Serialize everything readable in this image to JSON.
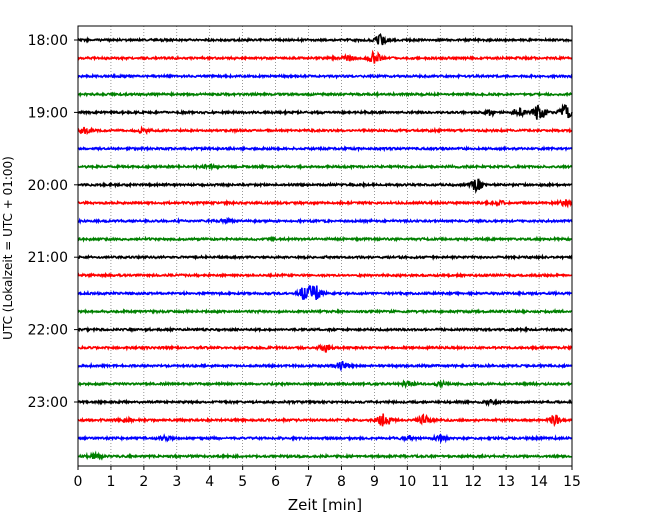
{
  "chart_data": {
    "type": "line",
    "title": "",
    "xlabel": "Zeit  [min]",
    "ylabel": "UTC (Lokalzeit = UTC + 01:00)",
    "xlim": [
      0,
      15
    ],
    "x_ticks": [
      0,
      1,
      2,
      3,
      4,
      5,
      6,
      7,
      8,
      9,
      10,
      11,
      12,
      13,
      14,
      15
    ],
    "y_tick_labels": [
      "18:00",
      "19:00",
      "20:00",
      "21:00",
      "22:00",
      "23:00"
    ],
    "grid": "vertical dotted at each minute",
    "series_colors": [
      "#000000",
      "#ff0000",
      "#0000ff",
      "#008000"
    ],
    "trace_interval_min": 15,
    "traces": [
      {
        "start": "18:00",
        "color": "#000000",
        "events": [
          {
            "t": 9.2,
            "amp": 0.35
          }
        ]
      },
      {
        "start": "18:15",
        "color": "#ff0000",
        "events": [
          {
            "t": 9.0,
            "amp": 0.45
          },
          {
            "t": 8.2,
            "amp": 0.15
          }
        ]
      },
      {
        "start": "18:30",
        "color": "#0000ff",
        "events": []
      },
      {
        "start": "18:45",
        "color": "#008000",
        "events": []
      },
      {
        "start": "19:00",
        "color": "#000000",
        "events": [
          {
            "t": 14.0,
            "amp": 0.6
          },
          {
            "t": 14.8,
            "amp": 0.6
          },
          {
            "t": 13.4,
            "amp": 0.35
          },
          {
            "t": 12.5,
            "amp": 0.2
          }
        ]
      },
      {
        "start": "19:15",
        "color": "#ff0000",
        "events": [
          {
            "t": 0.2,
            "amp": 0.3
          },
          {
            "t": 2.0,
            "amp": 0.15
          }
        ]
      },
      {
        "start": "19:30",
        "color": "#0000ff",
        "events": []
      },
      {
        "start": "19:45",
        "color": "#008000",
        "events": [
          {
            "t": 4.0,
            "amp": 0.15
          }
        ]
      },
      {
        "start": "20:00",
        "color": "#000000",
        "events": [
          {
            "t": 12.1,
            "amp": 0.45
          }
        ]
      },
      {
        "start": "20:15",
        "color": "#ff0000",
        "events": [
          {
            "t": 14.8,
            "amp": 0.2
          },
          {
            "t": 12.8,
            "amp": 0.12
          }
        ]
      },
      {
        "start": "20:30",
        "color": "#0000ff",
        "events": [
          {
            "t": 4.5,
            "amp": 0.15
          }
        ]
      },
      {
        "start": "20:45",
        "color": "#008000",
        "events": []
      },
      {
        "start": "21:00",
        "color": "#000000",
        "events": []
      },
      {
        "start": "21:15",
        "color": "#ff0000",
        "events": []
      },
      {
        "start": "21:30",
        "color": "#0000ff",
        "events": [
          {
            "t": 6.9,
            "amp": 0.5
          },
          {
            "t": 7.2,
            "amp": 0.6
          }
        ]
      },
      {
        "start": "21:45",
        "color": "#008000",
        "events": []
      },
      {
        "start": "22:00",
        "color": "#000000",
        "events": []
      },
      {
        "start": "22:15",
        "color": "#ff0000",
        "events": [
          {
            "t": 7.5,
            "amp": 0.3
          }
        ]
      },
      {
        "start": "22:30",
        "color": "#0000ff",
        "events": [
          {
            "t": 8.0,
            "amp": 0.3
          }
        ]
      },
      {
        "start": "22:45",
        "color": "#008000",
        "events": [
          {
            "t": 10.0,
            "amp": 0.15
          },
          {
            "t": 11.0,
            "amp": 0.12
          }
        ]
      },
      {
        "start": "23:00",
        "color": "#000000",
        "events": [
          {
            "t": 12.5,
            "amp": 0.15
          }
        ]
      },
      {
        "start": "23:15",
        "color": "#ff0000",
        "events": [
          {
            "t": 9.3,
            "amp": 0.55
          },
          {
            "t": 10.5,
            "amp": 0.35
          },
          {
            "t": 14.5,
            "amp": 0.4
          },
          {
            "t": 1.5,
            "amp": 0.12
          }
        ]
      },
      {
        "start": "23:30",
        "color": "#0000ff",
        "events": [
          {
            "t": 11.0,
            "amp": 0.2
          },
          {
            "t": 2.6,
            "amp": 0.15
          },
          {
            "t": 10.0,
            "amp": 0.15
          }
        ]
      },
      {
        "start": "23:45",
        "color": "#008000",
        "events": [
          {
            "t": 0.5,
            "amp": 0.15
          }
        ]
      }
    ]
  }
}
